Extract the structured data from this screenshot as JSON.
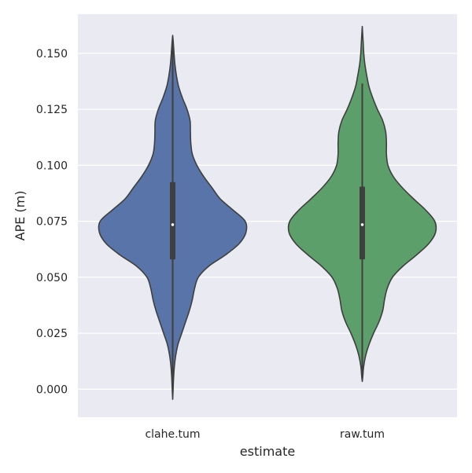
{
  "chart_data": {
    "type": "violin",
    "title": "",
    "xlabel": "estimate",
    "ylabel": "APE (m)",
    "ylim": [
      -0.0125,
      0.1675
    ],
    "yticks": [
      0.0,
      0.025,
      0.05,
      0.075,
      0.1,
      0.125,
      0.15
    ],
    "ytick_labels": [
      "0.000",
      "0.025",
      "0.050",
      "0.075",
      "0.100",
      "0.125",
      "0.150"
    ],
    "grid": true,
    "background": "#eaeaf2",
    "categories": [
      "clahe.tum",
      "raw.tum"
    ],
    "series": [
      {
        "category": "clahe.tum",
        "color": "#5874a8",
        "median": 0.0735,
        "q1": 0.058,
        "q3": 0.0925,
        "whisker_low": 0.0,
        "whisker_high": 0.1565,
        "min": -0.0045,
        "max": 0.158,
        "density": [
          [
            -0.0045,
            0.0
          ],
          [
            0.0,
            0.006
          ],
          [
            0.005,
            0.012
          ],
          [
            0.01,
            0.022
          ],
          [
            0.015,
            0.04
          ],
          [
            0.02,
            0.07
          ],
          [
            0.025,
            0.12
          ],
          [
            0.03,
            0.17
          ],
          [
            0.035,
            0.22
          ],
          [
            0.04,
            0.26
          ],
          [
            0.045,
            0.29
          ],
          [
            0.05,
            0.34
          ],
          [
            0.055,
            0.48
          ],
          [
            0.06,
            0.7
          ],
          [
            0.065,
            0.88
          ],
          [
            0.07,
            0.97
          ],
          [
            0.075,
            0.96
          ],
          [
            0.08,
            0.8
          ],
          [
            0.085,
            0.63
          ],
          [
            0.09,
            0.52
          ],
          [
            0.095,
            0.41
          ],
          [
            0.1,
            0.32
          ],
          [
            0.105,
            0.26
          ],
          [
            0.11,
            0.24
          ],
          [
            0.115,
            0.235
          ],
          [
            0.12,
            0.23
          ],
          [
            0.125,
            0.19
          ],
          [
            0.13,
            0.13
          ],
          [
            0.135,
            0.08
          ],
          [
            0.14,
            0.05
          ],
          [
            0.145,
            0.03
          ],
          [
            0.15,
            0.018
          ],
          [
            0.155,
            0.008
          ],
          [
            0.158,
            0.0
          ]
        ]
      },
      {
        "category": "raw.tum",
        "color": "#5c9f6b",
        "median": 0.0735,
        "q1": 0.058,
        "q3": 0.0905,
        "whisker_low": 0.004,
        "whisker_high": 0.1365,
        "min": 0.0035,
        "max": 0.162,
        "density": [
          [
            0.0035,
            0.0
          ],
          [
            0.006,
            0.008
          ],
          [
            0.01,
            0.018
          ],
          [
            0.015,
            0.045
          ],
          [
            0.02,
            0.09
          ],
          [
            0.025,
            0.15
          ],
          [
            0.03,
            0.22
          ],
          [
            0.035,
            0.27
          ],
          [
            0.04,
            0.295
          ],
          [
            0.045,
            0.33
          ],
          [
            0.05,
            0.4
          ],
          [
            0.055,
            0.54
          ],
          [
            0.06,
            0.72
          ],
          [
            0.065,
            0.88
          ],
          [
            0.07,
            0.97
          ],
          [
            0.075,
            0.96
          ],
          [
            0.08,
            0.84
          ],
          [
            0.085,
            0.68
          ],
          [
            0.09,
            0.53
          ],
          [
            0.095,
            0.41
          ],
          [
            0.1,
            0.34
          ],
          [
            0.105,
            0.32
          ],
          [
            0.11,
            0.32
          ],
          [
            0.115,
            0.31
          ],
          [
            0.12,
            0.27
          ],
          [
            0.125,
            0.2
          ],
          [
            0.13,
            0.14
          ],
          [
            0.135,
            0.09
          ],
          [
            0.14,
            0.06
          ],
          [
            0.145,
            0.035
          ],
          [
            0.15,
            0.02
          ],
          [
            0.155,
            0.012
          ],
          [
            0.162,
            0.0
          ]
        ]
      }
    ]
  }
}
